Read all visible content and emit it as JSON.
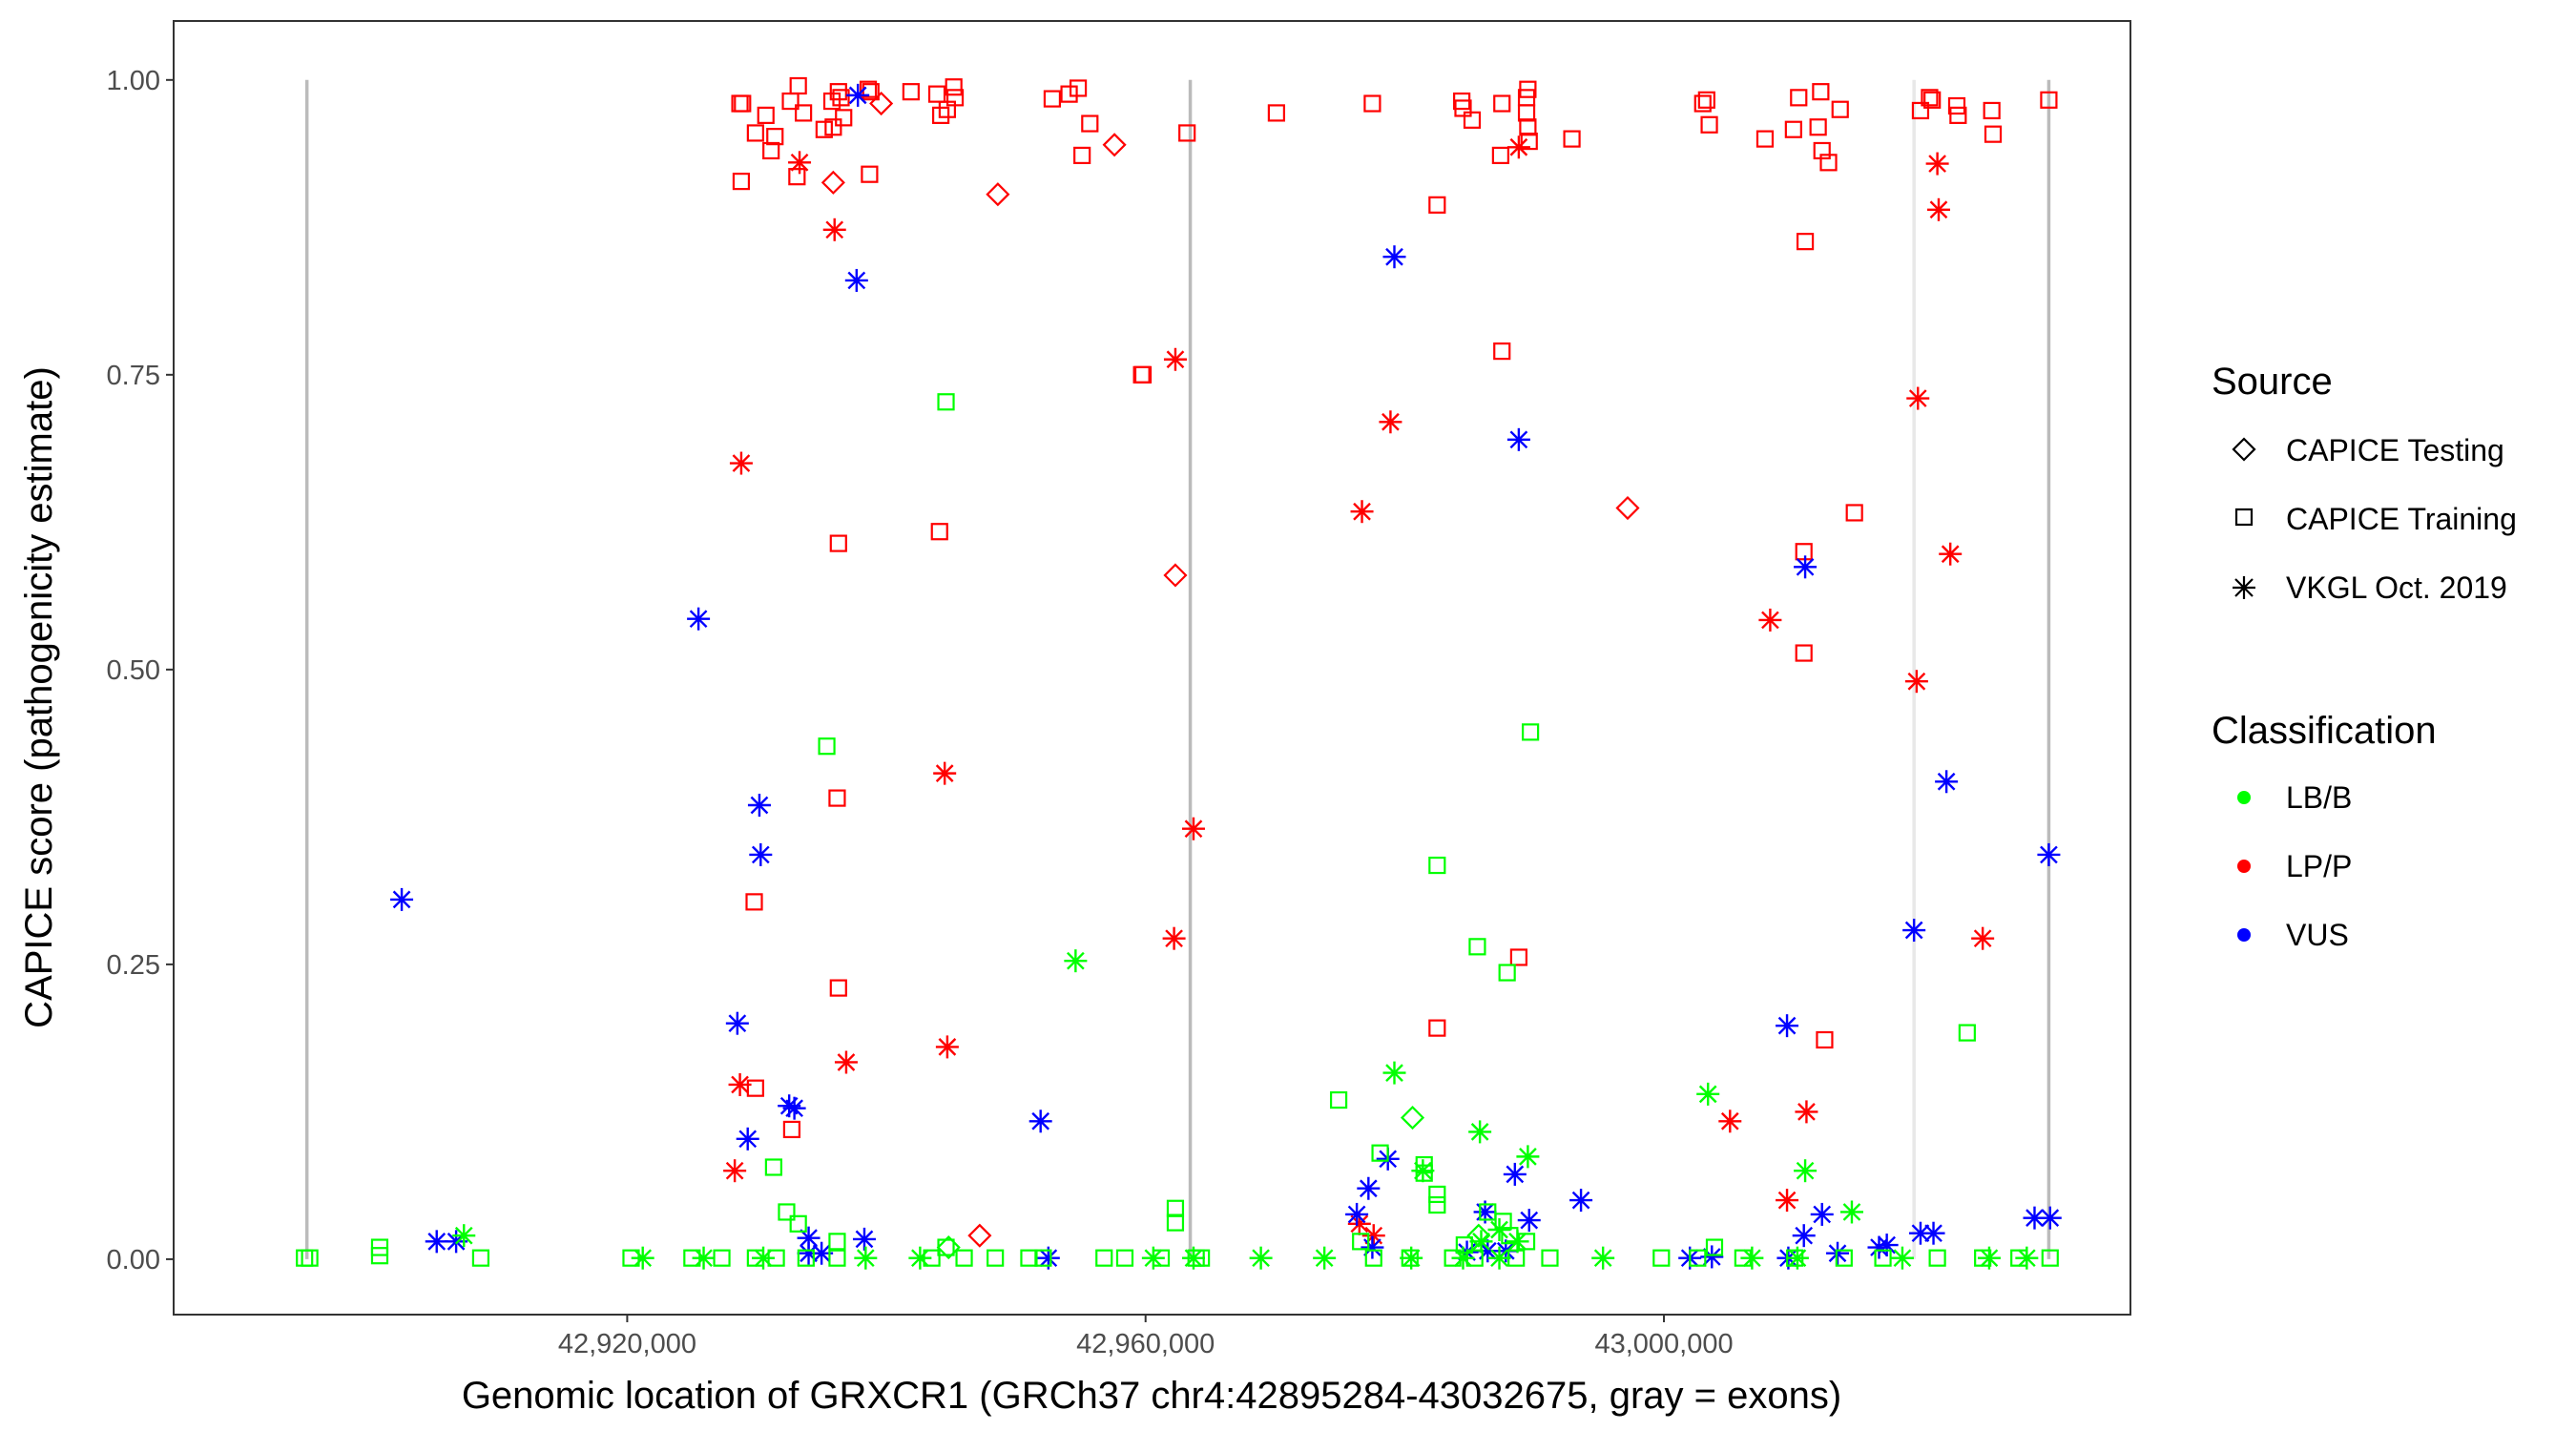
{
  "chart_data": {
    "type": "scatter",
    "xlabel": "Genomic location of GRXCR1 (GRCh37 chr4:42895284-43032675, gray = exons)",
    "ylabel": "CAPICE score (pathogenicity estimate)",
    "xlim": [
      42885000,
      43036000
    ],
    "ylim": [
      -0.047,
      1.05
    ],
    "x_ticks": [
      42920000,
      42960000,
      43000000
    ],
    "x_tick_labels": [
      "42,920,000",
      "42,960,000",
      "43,000,000"
    ],
    "y_ticks": [
      0,
      0.25,
      0.5,
      0.75,
      1.0
    ],
    "y_tick_labels": [
      "0.00",
      "0.25",
      "0.50",
      "0.75",
      "1.00"
    ],
    "exon_lines": [
      {
        "x": 42895284,
        "ymin": 0,
        "ymax": 1,
        "color": "#bbbbbb"
      },
      {
        "x": 42963450,
        "ymin": 0,
        "ymax": 1,
        "color": "#bbbbbb"
      },
      {
        "x": 43019300,
        "ymin": 0,
        "ymax": 1,
        "color": "#e8e8e8"
      },
      {
        "x": 43029700,
        "ymin": 0,
        "ymax": 1,
        "color": "#bbbbbb"
      }
    ],
    "legend": {
      "source_title": "Source",
      "source_items": [
        {
          "label": "CAPICE Testing",
          "shape": "diamond"
        },
        {
          "label": "CAPICE Training",
          "shape": "square"
        },
        {
          "label": "VKGL Oct. 2019",
          "shape": "asterisk"
        }
      ],
      "class_title": "Classification",
      "class_items": [
        {
          "label": "LB/B",
          "color": "#00ff00"
        },
        {
          "label": "LP/P",
          "color": "#ff0000"
        },
        {
          "label": "VUS",
          "color": "#0000ff"
        }
      ]
    },
    "series": [
      {
        "name": "LP/P CAPICE Training",
        "shape": "square",
        "color": "#ff0000",
        "points": [
          [
            42928700,
            0.98
          ],
          [
            42928900,
            0.98
          ],
          [
            42928800,
            0.914
          ],
          [
            42929900,
            0.955
          ],
          [
            42930700,
            0.97
          ],
          [
            42931400,
            0.952
          ],
          [
            42931100,
            0.94
          ],
          [
            42932600,
            0.982
          ],
          [
            42933200,
            0.995
          ],
          [
            42933600,
            0.972
          ],
          [
            42933100,
            0.918
          ],
          [
            42935200,
            0.958
          ],
          [
            42935800,
            0.982
          ],
          [
            42936300,
            0.99
          ],
          [
            42936500,
            0.985
          ],
          [
            42935900,
            0.96
          ],
          [
            42936700,
            0.968
          ],
          [
            42938600,
            0.992
          ],
          [
            42938800,
            0.99
          ],
          [
            42938700,
            0.92
          ],
          [
            42941900,
            0.99
          ],
          [
            42943900,
            0.988
          ],
          [
            42944200,
            0.97
          ],
          [
            42944700,
            0.975
          ],
          [
            42945200,
            0.994
          ],
          [
            42945300,
            0.985
          ],
          [
            42952800,
            0.984
          ],
          [
            42954100,
            0.988
          ],
          [
            42954800,
            0.993
          ],
          [
            42955700,
            0.963
          ],
          [
            42955100,
            0.936
          ],
          [
            42959700,
            0.75
          ],
          [
            42963200,
            0.955
          ],
          [
            42970100,
            0.972
          ],
          [
            42977500,
            0.98
          ],
          [
            42984400,
            0.982
          ],
          [
            42984500,
            0.976
          ],
          [
            42985200,
            0.966
          ],
          [
            42987400,
            0.936
          ],
          [
            42987500,
            0.98
          ],
          [
            42989400,
            0.985
          ],
          [
            42989500,
            0.992
          ],
          [
            42989400,
            0.972
          ],
          [
            42989500,
            0.96
          ],
          [
            42989600,
            0.948
          ],
          [
            42992900,
            0.95
          ],
          [
            43003000,
            0.98
          ],
          [
            43003300,
            0.983
          ],
          [
            43003500,
            0.962
          ],
          [
            43007800,
            0.95
          ],
          [
            43010000,
            0.958
          ],
          [
            43010400,
            0.985
          ],
          [
            43011900,
            0.96
          ],
          [
            43012100,
            0.99
          ],
          [
            43012700,
            0.93
          ],
          [
            43013600,
            0.975
          ],
          [
            43012200,
            0.94
          ],
          [
            43019800,
            0.974
          ],
          [
            43020500,
            0.985
          ],
          [
            43020700,
            0.983
          ],
          [
            43022700,
            0.97
          ],
          [
            43022600,
            0.978
          ],
          [
            43025300,
            0.974
          ],
          [
            43025400,
            0.954
          ],
          [
            43029700,
            0.983
          ],
          [
            42936300,
            0.607
          ],
          [
            42936200,
            0.391
          ],
          [
            42936300,
            0.23
          ],
          [
            42944100,
            0.617
          ],
          [
            42929800,
            0.303
          ],
          [
            42929900,
            0.145
          ],
          [
            42932700,
            0.11
          ],
          [
            42959800,
            0.75
          ],
          [
            42982500,
            0.894
          ],
          [
            42982500,
            0.196
          ],
          [
            42987500,
            0.77
          ],
          [
            42988800,
            0.256
          ],
          [
            43010900,
            0.863
          ],
          [
            43010800,
            0.6
          ],
          [
            43010800,
            0.514
          ],
          [
            43012400,
            0.186
          ],
          [
            43014700,
            0.633
          ]
        ]
      },
      {
        "name": "LP/P CAPICE Testing",
        "shape": "diamond",
        "color": "#ff0000",
        "points": [
          [
            42939600,
            0.98
          ],
          [
            42935900,
            0.913
          ],
          [
            42948600,
            0.903
          ],
          [
            42957600,
            0.945
          ],
          [
            42962300,
            0.58
          ],
          [
            42997200,
            0.637
          ],
          [
            42947200,
            0.02
          ]
        ]
      },
      {
        "name": "LP/P VKGL Oct. 2019",
        "shape": "asterisk",
        "color": "#ff0000",
        "points": [
          [
            42933300,
            0.93
          ],
          [
            42936000,
            0.873
          ],
          [
            42928800,
            0.675
          ],
          [
            42944500,
            0.412
          ],
          [
            42936900,
            0.167
          ],
          [
            42944700,
            0.18
          ],
          [
            42928700,
            0.148
          ],
          [
            42928300,
            0.075
          ],
          [
            42962300,
            0.763
          ],
          [
            42962200,
            0.272
          ],
          [
            42963700,
            0.365
          ],
          [
            42976700,
            0.634
          ],
          [
            42978900,
            0.71
          ],
          [
            42988800,
            0.943
          ],
          [
            43008200,
            0.542
          ],
          [
            43011000,
            0.125
          ],
          [
            43009500,
            0.05
          ],
          [
            43005100,
            0.117
          ],
          [
            43019600,
            0.73
          ],
          [
            43019500,
            0.49
          ],
          [
            43021100,
            0.929
          ],
          [
            43021200,
            0.89
          ],
          [
            43022100,
            0.598
          ],
          [
            43024600,
            0.272
          ],
          [
            42976500,
            0.03
          ],
          [
            42977600,
            0.02
          ]
        ]
      },
      {
        "name": "VUS VKGL Oct. 2019",
        "shape": "asterisk",
        "color": "#0000ff",
        "points": [
          [
            42937800,
            0.987
          ],
          [
            42937700,
            0.83
          ],
          [
            42979200,
            0.85
          ],
          [
            42988800,
            0.695
          ],
          [
            42925500,
            0.543
          ],
          [
            42902600,
            0.305
          ],
          [
            42928500,
            0.2
          ],
          [
            42930200,
            0.385
          ],
          [
            42930300,
            0.343
          ],
          [
            42932500,
            0.13
          ],
          [
            42932900,
            0.128
          ],
          [
            42929300,
            0.102
          ],
          [
            42951900,
            0.117
          ],
          [
            43010900,
            0.587
          ],
          [
            43021800,
            0.405
          ],
          [
            43029700,
            0.343
          ],
          [
            43019300,
            0.279
          ],
          [
            43009500,
            0.198
          ],
          [
            42978700,
            0.085
          ],
          [
            42977200,
            0.06
          ],
          [
            42988500,
            0.072
          ],
          [
            42993600,
            0.05
          ],
          [
            42986200,
            0.04
          ],
          [
            42989600,
            0.033
          ],
          [
            42976300,
            0.038
          ],
          [
            43019800,
            0.022
          ],
          [
            43020800,
            0.022
          ],
          [
            43010800,
            0.02
          ],
          [
            43012200,
            0.038
          ],
          [
            43028600,
            0.035
          ],
          [
            43029800,
            0.035
          ],
          [
            42905300,
            0.015
          ],
          [
            42906800,
            0.015
          ],
          [
            42934000,
            0.018
          ],
          [
            42938300,
            0.017
          ],
          [
            42934000,
            0.005
          ],
          [
            42935000,
            0.005
          ],
          [
            42977500,
            0.01
          ],
          [
            42984800,
            0.006
          ],
          [
            42986400,
            0.007
          ],
          [
            42987800,
            0.007
          ],
          [
            43016600,
            0.01
          ],
          [
            43017200,
            0.012
          ],
          [
            43013400,
            0.005
          ],
          [
            43003700,
            0.002
          ],
          [
            42952500,
            0.001
          ],
          [
            43002000,
            0.001
          ],
          [
            43009600,
            0.001
          ]
        ]
      },
      {
        "name": "LB/B CAPICE Training",
        "shape": "square",
        "color": "#00ff00",
        "points": [
          [
            42944600,
            0.727
          ],
          [
            42935400,
            0.435
          ],
          [
            42989700,
            0.447
          ],
          [
            42982500,
            0.334
          ],
          [
            42985600,
            0.265
          ],
          [
            42987900,
            0.243
          ],
          [
            43023400,
            0.192
          ],
          [
            42974900,
            0.135
          ],
          [
            42978100,
            0.09
          ],
          [
            42981500,
            0.08
          ],
          [
            42981500,
            0.073
          ],
          [
            42931300,
            0.078
          ],
          [
            42932300,
            0.04
          ],
          [
            42933200,
            0.03
          ],
          [
            42962300,
            0.043
          ],
          [
            42962300,
            0.031
          ],
          [
            42982500,
            0.055
          ],
          [
            42982500,
            0.046
          ],
          [
            42986400,
            0.04
          ],
          [
            42987600,
            0.032
          ],
          [
            42988100,
            0.02
          ],
          [
            42989400,
            0.015
          ],
          [
            42936200,
            0.015
          ],
          [
            43003900,
            0.01
          ],
          [
            42944600,
            0.01
          ],
          [
            42984600,
            0.012
          ],
          [
            42976600,
            0.015
          ],
          [
            42900900,
            0.01
          ],
          [
            42895100,
            0.001
          ],
          [
            42895500,
            0.001
          ],
          [
            42900900,
            0.003
          ],
          [
            42908700,
            0.001
          ],
          [
            42920300,
            0.001
          ],
          [
            42925000,
            0.001
          ],
          [
            42927300,
            0.001
          ],
          [
            42929900,
            0.001
          ],
          [
            42931500,
            0.001
          ],
          [
            42933800,
            0.001
          ],
          [
            42936200,
            0.001
          ],
          [
            42943500,
            0.001
          ],
          [
            42946000,
            0.001
          ],
          [
            42948400,
            0.001
          ],
          [
            42951000,
            0.001
          ],
          [
            42952100,
            0.001
          ],
          [
            42956800,
            0.001
          ],
          [
            42958400,
            0.001
          ],
          [
            42961200,
            0.001
          ],
          [
            42963900,
            0.001
          ],
          [
            42964300,
            0.001
          ],
          [
            42977600,
            0.001
          ],
          [
            42980400,
            0.001
          ],
          [
            42983700,
            0.001
          ],
          [
            42985400,
            0.001
          ],
          [
            42988600,
            0.001
          ],
          [
            42991200,
            0.001
          ],
          [
            42999800,
            0.001
          ],
          [
            43002600,
            0.001
          ],
          [
            43006100,
            0.001
          ],
          [
            43010100,
            0.001
          ],
          [
            43013900,
            0.001
          ],
          [
            43016900,
            0.001
          ],
          [
            43021100,
            0.001
          ],
          [
            43024600,
            0.001
          ],
          [
            43027400,
            0.001
          ],
          [
            43029800,
            0.001
          ]
        ]
      },
      {
        "name": "LB/B CAPICE Testing",
        "shape": "diamond",
        "color": "#00ff00",
        "points": [
          [
            42980600,
            0.12
          ],
          [
            42944800,
            0.01
          ],
          [
            42985700,
            0.02
          ]
        ]
      },
      {
        "name": "LB/B VKGL Oct. 2019",
        "shape": "asterisk",
        "color": "#00ff00",
        "points": [
          [
            42954600,
            0.253
          ],
          [
            42979200,
            0.158
          ],
          [
            43003400,
            0.14
          ],
          [
            42985800,
            0.108
          ],
          [
            42989500,
            0.087
          ],
          [
            43010900,
            0.075
          ],
          [
            42981400,
            0.075
          ],
          [
            43014500,
            0.04
          ],
          [
            42907400,
            0.02
          ],
          [
            42968900,
            0.001
          ],
          [
            42921200,
            0.001
          ],
          [
            42925900,
            0.001
          ],
          [
            42930500,
            0.001
          ],
          [
            42938400,
            0.001
          ],
          [
            42942600,
            0.001
          ],
          [
            42960600,
            0.001
          ],
          [
            42963700,
            0.001
          ],
          [
            42973800,
            0.001
          ],
          [
            42980500,
            0.001
          ],
          [
            42984500,
            0.001
          ],
          [
            42987300,
            0.001
          ],
          [
            42995300,
            0.001
          ],
          [
            43006800,
            0.001
          ],
          [
            43010300,
            0.001
          ],
          [
            43018400,
            0.001
          ],
          [
            43025100,
            0.001
          ],
          [
            43028000,
            0.001
          ],
          [
            42988700,
            0.015
          ],
          [
            42985900,
            0.015
          ],
          [
            42987300,
            0.025
          ]
        ]
      }
    ]
  }
}
